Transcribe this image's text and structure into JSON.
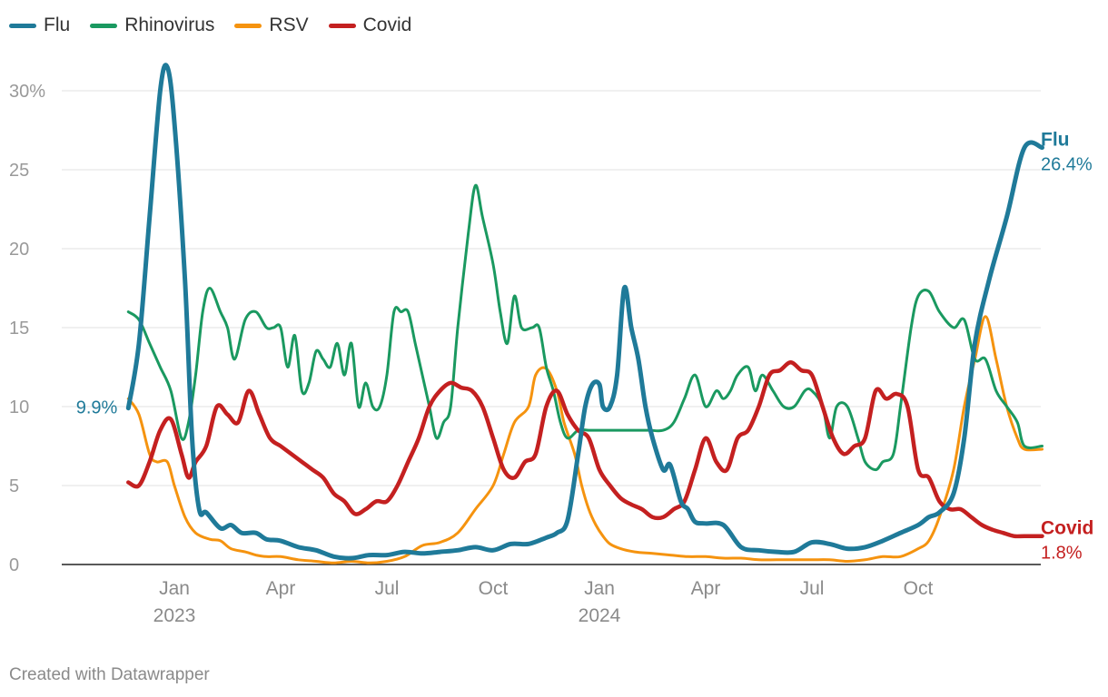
{
  "chart_data": {
    "type": "line",
    "title": "",
    "xlabel": "",
    "ylabel": "",
    "ylim": [
      0,
      32
    ],
    "yticks": [
      0,
      5,
      10,
      15,
      20,
      25,
      30
    ],
    "ytick_labels": [
      "0",
      "5",
      "10",
      "15",
      "20",
      "25",
      "30%"
    ],
    "xaxis_labels": [
      {
        "month": 3,
        "label": "Jan",
        "year": "2023"
      },
      {
        "month": 6,
        "label": "Apr",
        "year": ""
      },
      {
        "month": 9,
        "label": "Jul",
        "year": ""
      },
      {
        "month": 12,
        "label": "Oct",
        "year": ""
      },
      {
        "month": 15,
        "label": "Jan",
        "year": "2024"
      },
      {
        "month": 18,
        "label": "Apr",
        "year": ""
      },
      {
        "month": 21,
        "label": "Jul",
        "year": ""
      },
      {
        "month": 24,
        "label": "Oct",
        "year": ""
      }
    ],
    "x_unit": "months since Oct 2022",
    "series": [
      {
        "name": "Flu",
        "color": "#1f7a99",
        "x": [
          1.7,
          2.0,
          2.3,
          2.6,
          2.8,
          3.0,
          3.3,
          3.5,
          3.7,
          3.9,
          4.3,
          4.6,
          4.9,
          5.3,
          5.6,
          6.0,
          6.5,
          7.0,
          7.5,
          8.0,
          8.5,
          9.0,
          9.5,
          10.0,
          10.5,
          11.0,
          11.5,
          12.0,
          12.5,
          13.0,
          13.5,
          13.8,
          14.1,
          14.4,
          14.6,
          14.8,
          15.0,
          15.1,
          15.3,
          15.5,
          15.7,
          15.9,
          16.1,
          16.3,
          16.5,
          16.8,
          17.0,
          17.3,
          17.5,
          17.7,
          18.0,
          18.5,
          19.0,
          19.5,
          20.0,
          20.5,
          21.0,
          21.5,
          22.0,
          22.5,
          23.0,
          23.5,
          24.0,
          24.3,
          24.6,
          25.0,
          25.3,
          25.6,
          26.0,
          26.5,
          27.0,
          27.5
        ],
        "values": [
          9.9,
          14,
          22,
          30,
          31.5,
          28,
          18,
          8,
          3.5,
          3.3,
          2.3,
          2.5,
          2,
          2,
          1.6,
          1.5,
          1.1,
          0.9,
          0.5,
          0.4,
          0.6,
          0.6,
          0.8,
          0.7,
          0.8,
          0.9,
          1.1,
          0.9,
          1.3,
          1.3,
          1.7,
          2.0,
          2.8,
          7,
          10,
          11.4,
          11.4,
          10,
          10,
          12,
          17.5,
          15,
          13,
          10,
          8,
          6,
          6.3,
          4,
          3.5,
          2.7,
          2.6,
          2.5,
          1.1,
          0.9,
          0.8,
          0.8,
          1.4,
          1.3,
          1.0,
          1.1,
          1.5,
          2.0,
          2.5,
          3,
          3.3,
          4.5,
          8,
          14,
          18,
          22,
          26.4,
          26.4
        ]
      },
      {
        "name": "Rhinovirus",
        "color": "#1a9960",
        "x": [
          1.7,
          2.0,
          2.3,
          2.6,
          2.9,
          3.2,
          3.4,
          3.6,
          3.8,
          4.0,
          4.3,
          4.5,
          4.7,
          5.0,
          5.3,
          5.6,
          5.8,
          6.0,
          6.2,
          6.4,
          6.6,
          6.8,
          7.0,
          7.2,
          7.4,
          7.6,
          7.8,
          8.0,
          8.2,
          8.4,
          8.6,
          8.8,
          9.0,
          9.2,
          9.4,
          9.6,
          9.8,
          10.0,
          10.2,
          10.4,
          10.6,
          10.8,
          11.0,
          11.3,
          11.5,
          11.7,
          12.0,
          12.2,
          12.4,
          12.6,
          12.8,
          13.1,
          13.3,
          13.5,
          13.7,
          13.9,
          14.1,
          14.4,
          14.7,
          15.0,
          15.3,
          15.6,
          16.0,
          16.4,
          16.8,
          17.1,
          17.4,
          17.7,
          18.0,
          18.3,
          18.5,
          18.7,
          18.9,
          19.2,
          19.4,
          19.6,
          19.9,
          20.2,
          20.5,
          20.8,
          21.0,
          21.3,
          21.5,
          21.7,
          22.0,
          22.3,
          22.5,
          22.8,
          23.0,
          23.3,
          23.5,
          23.8,
          24.0,
          24.3,
          24.6,
          25.0,
          25.3,
          25.6,
          25.9,
          26.2,
          26.5,
          26.8,
          27.0,
          27.5
        ],
        "values": [
          16,
          15.5,
          14,
          12.5,
          11,
          8,
          9,
          12,
          16,
          17.5,
          16,
          15,
          13,
          15.5,
          16,
          15,
          15,
          15,
          12.5,
          14.5,
          11,
          11.5,
          13.5,
          13,
          12.5,
          14,
          12,
          14,
          10,
          11.5,
          10,
          10,
          12,
          16,
          16,
          16,
          14,
          12,
          10,
          8,
          9,
          10,
          15,
          21,
          24,
          22,
          19,
          16,
          14,
          17,
          15,
          15,
          15,
          12.5,
          11,
          9,
          8,
          8.5,
          8.5,
          8.5,
          8.5,
          8.5,
          8.5,
          8.5,
          8.5,
          9,
          10.5,
          12,
          10,
          11,
          10.5,
          11,
          12,
          12.5,
          11,
          12,
          11,
          10,
          10,
          11,
          11,
          10,
          8,
          10,
          10,
          8,
          6.5,
          6,
          6.5,
          7,
          10,
          15,
          17,
          17.3,
          16,
          15,
          15.5,
          13,
          13,
          11,
          10,
          9,
          7.5,
          7.5
        ]
      },
      {
        "name": "RSV",
        "color": "#f5930f",
        "x": [
          1.7,
          2.0,
          2.3,
          2.5,
          2.8,
          3.0,
          3.3,
          3.6,
          4.0,
          4.3,
          4.6,
          5.0,
          5.3,
          5.6,
          6.0,
          6.5,
          7.0,
          7.5,
          8.0,
          8.5,
          9.0,
          9.5,
          10.0,
          10.5,
          11.0,
          11.5,
          12.0,
          12.3,
          12.6,
          13.0,
          13.2,
          13.5,
          13.8,
          14.0,
          14.3,
          14.5,
          14.7,
          14.9,
          15.1,
          15.3,
          15.6,
          16.0,
          16.5,
          17.0,
          17.5,
          18.0,
          18.5,
          19.0,
          19.5,
          20.0,
          20.5,
          21.0,
          21.5,
          22.0,
          22.5,
          23.0,
          23.5,
          24.0,
          24.3,
          24.6,
          25.0,
          25.3,
          25.6,
          25.9,
          26.2,
          26.5,
          26.8,
          27.0,
          27.5
        ],
        "values": [
          10.5,
          9.5,
          7,
          6.5,
          6.5,
          5,
          3,
          2,
          1.6,
          1.5,
          1,
          0.8,
          0.6,
          0.5,
          0.5,
          0.3,
          0.2,
          0.1,
          0.2,
          0.1,
          0.2,
          0.5,
          1.2,
          1.4,
          2,
          3.5,
          5,
          7,
          9,
          10,
          12,
          12.4,
          11,
          9,
          7,
          5,
          3.5,
          2.5,
          1.8,
          1.3,
          1,
          0.8,
          0.7,
          0.6,
          0.5,
          0.5,
          0.4,
          0.4,
          0.3,
          0.3,
          0.3,
          0.3,
          0.3,
          0.2,
          0.3,
          0.5,
          0.5,
          1,
          1.5,
          3,
          6,
          10,
          13,
          15.7,
          13,
          10,
          8,
          7.3,
          7.3
        ]
      },
      {
        "name": "Covid",
        "color": "#c42020",
        "x": [
          1.7,
          2.0,
          2.3,
          2.6,
          2.9,
          3.2,
          3.4,
          3.6,
          3.9,
          4.2,
          4.5,
          4.8,
          5.1,
          5.4,
          5.7,
          6.0,
          6.3,
          6.6,
          6.9,
          7.2,
          7.5,
          7.8,
          8.1,
          8.4,
          8.7,
          9.0,
          9.3,
          9.6,
          9.9,
          10.2,
          10.5,
          10.8,
          11.1,
          11.4,
          11.7,
          12.0,
          12.3,
          12.6,
          12.9,
          13.2,
          13.5,
          13.8,
          14.1,
          14.4,
          14.7,
          15.0,
          15.3,
          15.6,
          15.9,
          16.2,
          16.5,
          16.8,
          17.1,
          17.4,
          17.7,
          18.0,
          18.3,
          18.6,
          18.9,
          19.2,
          19.5,
          19.8,
          20.1,
          20.4,
          20.7,
          21.0,
          21.3,
          21.6,
          21.9,
          22.2,
          22.5,
          22.8,
          23.1,
          23.4,
          23.7,
          24.0,
          24.3,
          24.6,
          24.9,
          25.2,
          25.5,
          25.8,
          26.1,
          26.4,
          26.7,
          27.0,
          27.5
        ],
        "values": [
          5.2,
          5,
          6.5,
          8.5,
          9.2,
          7,
          5.5,
          6.5,
          7.5,
          10,
          9.5,
          9,
          11,
          9.5,
          8,
          7.5,
          7,
          6.5,
          6,
          5.5,
          4.5,
          4,
          3.2,
          3.5,
          4,
          4,
          5,
          6.5,
          8,
          10,
          11,
          11.5,
          11.2,
          11,
          10,
          8,
          6,
          5.5,
          6.5,
          7,
          10,
          11,
          9.5,
          8.5,
          8,
          6,
          5,
          4.2,
          3.8,
          3.5,
          3,
          3,
          3.5,
          4,
          6,
          8,
          6.5,
          6,
          8,
          8.5,
          10,
          12,
          12.3,
          12.8,
          12.3,
          12,
          10,
          8,
          7,
          7.5,
          8,
          11,
          10.5,
          10.8,
          10,
          6,
          5.5,
          4,
          3.5,
          3.5,
          3,
          2.5,
          2.2,
          2,
          1.8,
          1.8,
          1.8
        ]
      }
    ],
    "annotations": [
      {
        "series": "Flu",
        "side": "start",
        "text": "9.9%"
      },
      {
        "series": "Flu",
        "side": "end",
        "title": "Flu",
        "text": "26.4%"
      },
      {
        "series": "Covid",
        "side": "end",
        "title": "Covid",
        "text": "1.8%"
      }
    ]
  },
  "legend": [
    {
      "label": "Flu",
      "color": "#1f7a99"
    },
    {
      "label": "Rhinovirus",
      "color": "#1a9960"
    },
    {
      "label": "RSV",
      "color": "#f5930f"
    },
    {
      "label": "Covid",
      "color": "#c42020"
    }
  ],
  "credit": "Created with Datawrapper"
}
